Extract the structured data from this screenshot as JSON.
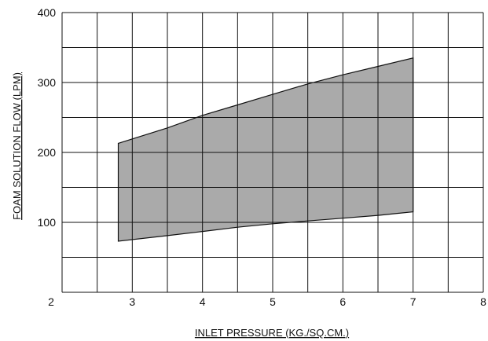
{
  "chart_data": {
    "type": "area",
    "title": "",
    "xlabel": "INLET PRESSURE (KG./SQ.CM.)",
    "ylabel": "FOAM SOLUTION FLOW (LPM)",
    "xlim": [
      2,
      8
    ],
    "ylim": [
      0,
      400
    ],
    "x_ticks": [
      2,
      3,
      4,
      5,
      6,
      7,
      8
    ],
    "y_ticks": [
      100,
      200,
      300,
      400
    ],
    "grid": true,
    "grid_step": {
      "x": 0.5,
      "y": 50
    },
    "fill_color": "#aaaaaa",
    "series": [
      {
        "upper": [
          {
            "x": 2.8,
            "y": 213
          },
          {
            "x": 3.5,
            "y": 235
          },
          {
            "x": 4.0,
            "y": 253
          },
          {
            "x": 4.5,
            "y": 268
          },
          {
            "x": 5.0,
            "y": 283
          },
          {
            "x": 5.5,
            "y": 298
          },
          {
            "x": 6.0,
            "y": 311
          },
          {
            "x": 6.5,
            "y": 323
          },
          {
            "x": 7.0,
            "y": 335
          }
        ],
        "lower": [
          {
            "x": 2.8,
            "y": 73
          },
          {
            "x": 3.5,
            "y": 81
          },
          {
            "x": 4.0,
            "y": 87
          },
          {
            "x": 4.5,
            "y": 93
          },
          {
            "x": 5.0,
            "y": 98
          },
          {
            "x": 5.5,
            "y": 102
          },
          {
            "x": 6.0,
            "y": 106
          },
          {
            "x": 6.5,
            "y": 110
          },
          {
            "x": 7.0,
            "y": 115
          }
        ]
      }
    ]
  }
}
